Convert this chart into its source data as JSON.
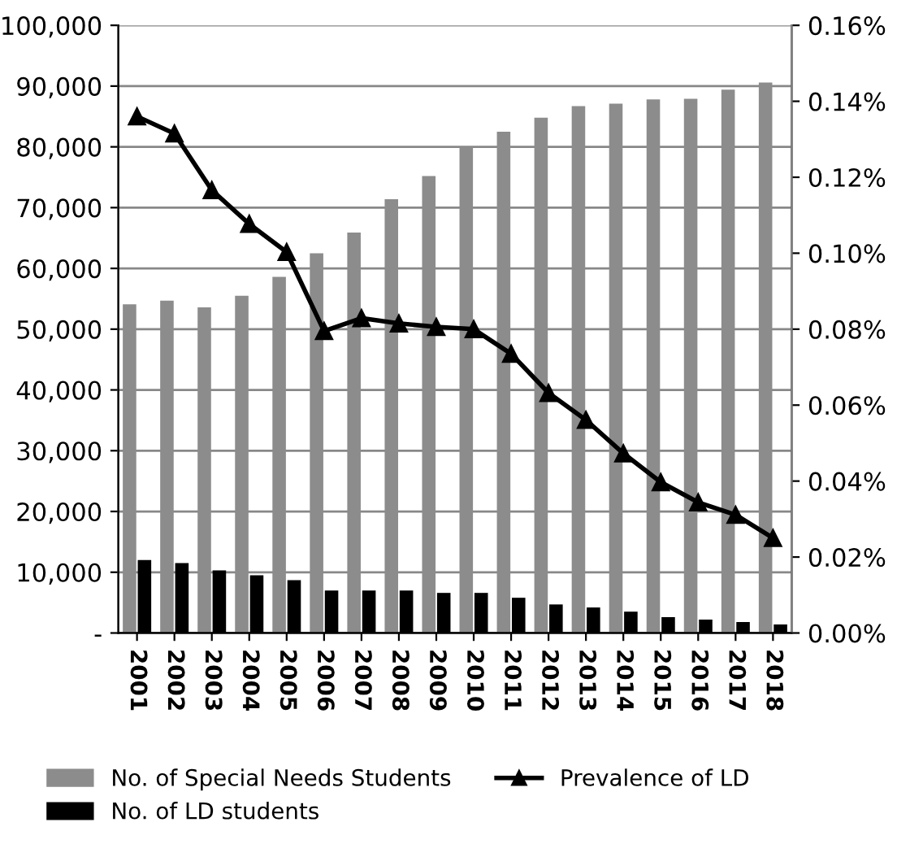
{
  "chart_data": {
    "type": "bar",
    "categories": [
      "2001",
      "2002",
      "2003",
      "2004",
      "2005",
      "2006",
      "2007",
      "2008",
      "2009",
      "2010",
      "2011",
      "2012",
      "2013",
      "2014",
      "2015",
      "2016",
      "2017",
      "2018"
    ],
    "series": [
      {
        "name": "No. of Special Needs Students",
        "color": "#8c8c8c",
        "values": [
          54100,
          54700,
          53600,
          55500,
          58600,
          62500,
          65900,
          71400,
          75200,
          80000,
          82500,
          84800,
          86700,
          87100,
          87800,
          87900,
          89400,
          90600
        ]
      },
      {
        "name": "No. of LD students",
        "color": "#000000",
        "values": [
          12000,
          11500,
          10300,
          9500,
          8700,
          7000,
          7000,
          7000,
          6600,
          6600,
          5800,
          4700,
          4200,
          3500,
          2600,
          2200,
          1800,
          1400
        ]
      },
      {
        "name": "Prevalence of LD",
        "type": "line",
        "axis": "y2",
        "color": "#000000",
        "marker": "triangle",
        "line_style": "solid",
        "values": [
          0.136,
          0.1315,
          0.1166,
          0.1077,
          0.1003,
          0.0795,
          0.0829,
          0.0815,
          0.0806,
          0.08,
          0.0735,
          0.0632,
          0.0561,
          0.0473,
          0.0397,
          0.0344,
          0.0311,
          0.025
        ]
      }
    ],
    "ylim": [
      0,
      100000
    ],
    "yticks": [
      {
        "value": 0,
        "label": "-"
      },
      {
        "value": 10000,
        "label": "10,000"
      },
      {
        "value": 20000,
        "label": "20,000"
      },
      {
        "value": 30000,
        "label": "30,000"
      },
      {
        "value": 40000,
        "label": "40,000"
      },
      {
        "value": 50000,
        "label": "50,000"
      },
      {
        "value": 60000,
        "label": "60,000"
      },
      {
        "value": 70000,
        "label": "70,000"
      },
      {
        "value": 80000,
        "label": "80,000"
      },
      {
        "value": 90000,
        "label": "90,000"
      },
      {
        "value": 100000,
        "label": "100,000"
      }
    ],
    "y2lim": [
      0,
      0.16
    ],
    "y2ticks": [
      {
        "value": 0,
        "label": "0.00%"
      },
      {
        "value": 0.02,
        "label": "0.02%"
      },
      {
        "value": 0.04,
        "label": "0.04%"
      },
      {
        "value": 0.06,
        "label": "0.06%"
      },
      {
        "value": 0.08,
        "label": "0.08%"
      },
      {
        "value": 0.1,
        "label": "0.10%"
      },
      {
        "value": 0.12,
        "label": "0.12%"
      },
      {
        "value": 0.14,
        "label": "0.14%"
      },
      {
        "value": 0.16,
        "label": "0.16%"
      }
    ],
    "grid": "y",
    "legend": "bottom"
  }
}
